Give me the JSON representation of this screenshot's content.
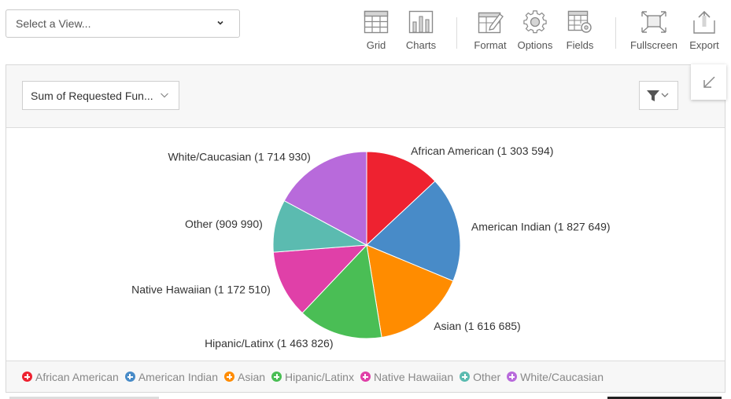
{
  "view_select": {
    "placeholder": "Select a View..."
  },
  "toolbar": {
    "grid": "Grid",
    "charts": "Charts",
    "format": "Format",
    "options": "Options",
    "fields": "Fields",
    "fullscreen": "Fullscreen",
    "export": "Export"
  },
  "measure_select": {
    "value": "Sum of Requested Fun..."
  },
  "chart_data": {
    "type": "pie",
    "title": "",
    "categories": [
      "African American",
      "American Indian",
      "Asian",
      "Hipanic/Latinx",
      "Native Hawaiian",
      "Other",
      "White/Caucasian"
    ],
    "values": [
      1303594,
      1827649,
      1616685,
      1463826,
      1172510,
      909990,
      1714930
    ],
    "labels": [
      "African American (1 303 594)",
      "American Indian (1 827 649)",
      "Asian (1 616 685)",
      "Hipanic/Latinx (1 463 826)",
      "Native Hawaiian (1 172 510)",
      "Other (909 990)",
      "White/Caucasian (1 714 930)"
    ],
    "colors": [
      "#EE2230",
      "#488BC8",
      "#FF8C00",
      "#4ABE55",
      "#E040A8",
      "#5BBBB0",
      "#B86ADB"
    ],
    "legend_position": "bottom"
  },
  "legend": {
    "items": [
      "African American",
      "American Indian",
      "Asian",
      "Hipanic/Latinx",
      "Native Hawaiian",
      "Other",
      "White/Caucasian"
    ]
  }
}
